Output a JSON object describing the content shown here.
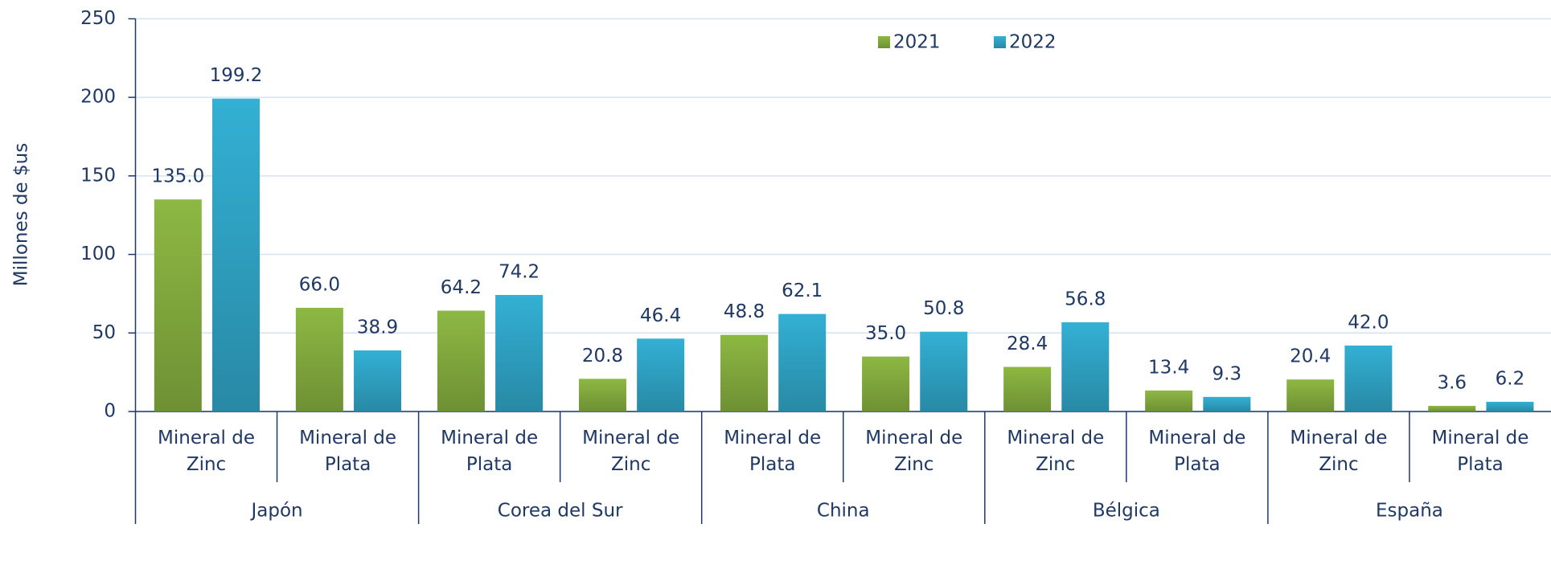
{
  "chart_data": {
    "type": "bar",
    "y_label": "Millones de $us",
    "categories": [
      "Mineral de Zinc",
      "Mineral de Plata",
      "Mineral de Plata",
      "Mineral de Zinc",
      "Mineral de Plata",
      "Mineral de Zinc",
      "Mineral de Zinc",
      "Mineral de Plata",
      "Mineral de Zinc",
      "Mineral de Plata"
    ],
    "groups": [
      "Japón",
      "Corea del Sur",
      "China",
      "Bélgica",
      "España"
    ],
    "series": [
      {
        "name": "2021",
        "color": "#8db843",
        "values": [
          135.0,
          66.0,
          64.2,
          20.8,
          48.8,
          35.0,
          28.4,
          13.4,
          20.4,
          3.6
        ],
        "value_labels": [
          "135.0",
          "66.0",
          "64.2",
          "20.8",
          "48.8",
          "35.0",
          "28.4",
          "13.4",
          "20.4",
          "3.6"
        ]
      },
      {
        "name": "2022",
        "color": "#33b0d4",
        "values": [
          199.2,
          38.9,
          74.2,
          46.4,
          62.1,
          50.8,
          56.8,
          9.3,
          42.0,
          6.2
        ],
        "value_labels": [
          "199.2",
          "38.9",
          "74.2",
          "46.4",
          "62.1",
          "50.8",
          "56.8",
          "9.3",
          "42.0",
          "6.2"
        ]
      }
    ],
    "ylim": [
      0,
      250
    ],
    "yticks": [
      0,
      50,
      100,
      150,
      200,
      250
    ],
    "grid": true,
    "legend": "top"
  }
}
